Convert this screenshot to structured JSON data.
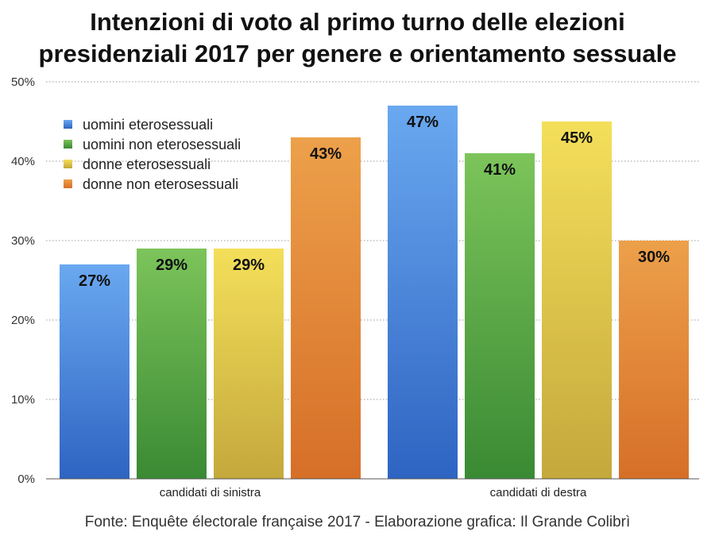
{
  "title_line1": "Intenzioni di voto al primo turno delle elezioni",
  "title_line2": "presidenziali 2017 per genere e orientamento sessuale",
  "source": "Fonte: Enquête électorale française 2017 - Elaborazione grafica: Il Grande Colibrì",
  "chart_data": {
    "type": "bar",
    "title": "Intenzioni di voto al primo turno delle elezioni presidenziali 2017 per genere e orientamento sessuale",
    "xlabel": "",
    "ylabel": "",
    "categories": [
      "candidati di sinistra",
      "candidati di destra"
    ],
    "yticks": [
      "0%",
      "10%",
      "20%",
      "30%",
      "40%",
      "50%"
    ],
    "ylim": [
      0,
      50
    ],
    "grid": true,
    "legend_position": "upper-left",
    "series": [
      {
        "name": "uomini eterosessuali",
        "values": [
          27,
          47
        ],
        "color_top": "#6aa8f0",
        "color_bottom": "#2e64c2"
      },
      {
        "name": "uomini non eterosessuali",
        "values": [
          29,
          41
        ],
        "color_top": "#7cc45a",
        "color_bottom": "#3a8a34"
      },
      {
        "name": "donne eterosessuali",
        "values": [
          29,
          45
        ],
        "color_top": "#f4df5a",
        "color_bottom": "#c4a83c"
      },
      {
        "name": "donne non eterosessuali",
        "values": [
          43,
          30
        ],
        "color_top": "#eda04a",
        "color_bottom": "#d66f28"
      }
    ],
    "data_labels": [
      [
        "27%",
        "47%"
      ],
      [
        "29%",
        "41%"
      ],
      [
        "29%",
        "45%"
      ],
      [
        "43%",
        "30%"
      ]
    ]
  }
}
